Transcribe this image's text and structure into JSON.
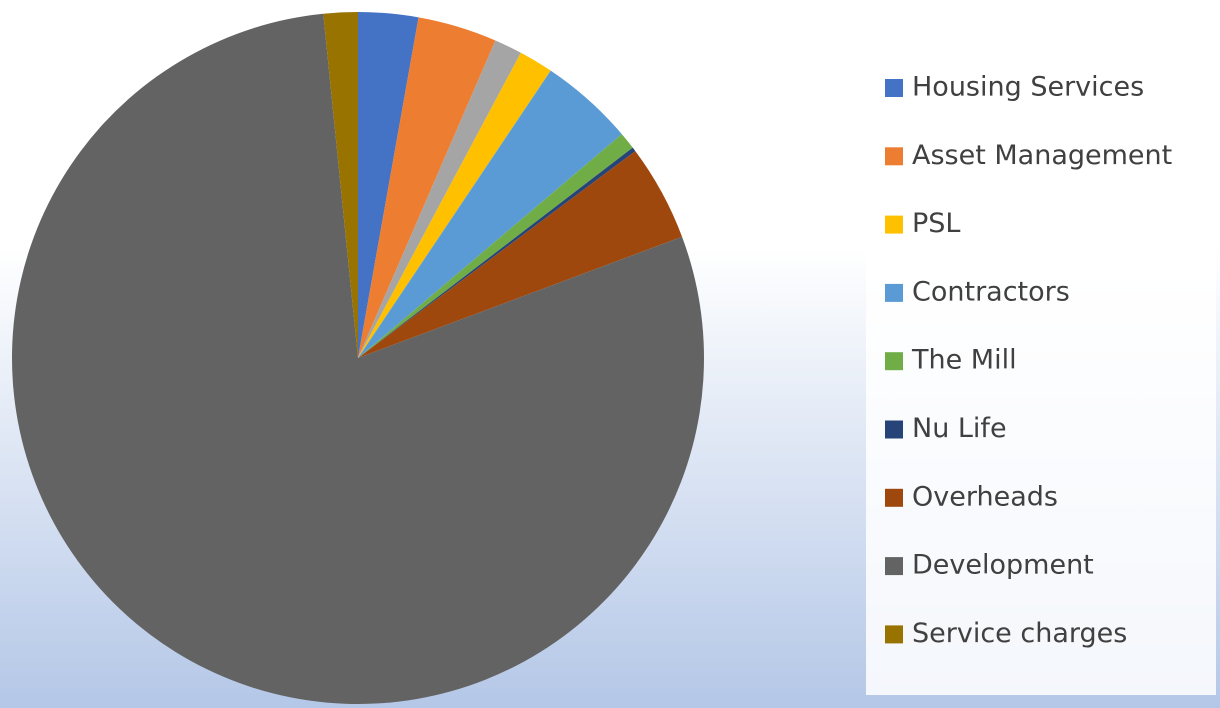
{
  "chart_data": {
    "type": "pie",
    "categories": [
      "Housing Services",
      "Asset Management",
      null,
      "PSL",
      "Contractors",
      "The Mill",
      "Nu Life",
      "Overheads",
      "Development",
      "Service charges"
    ],
    "values": [
      2.8,
      3.7,
      1.3,
      1.6,
      4.4,
      0.8,
      0.2,
      4.5,
      79.1,
      1.6
    ],
    "colors": [
      "#4472c4",
      "#ed7d31",
      "#a5a5a5",
      "#ffc000",
      "#5b9bd5",
      "#70ad47",
      "#264478",
      "#9e480e",
      "#636363",
      "#997300"
    ],
    "legend": "right"
  }
}
